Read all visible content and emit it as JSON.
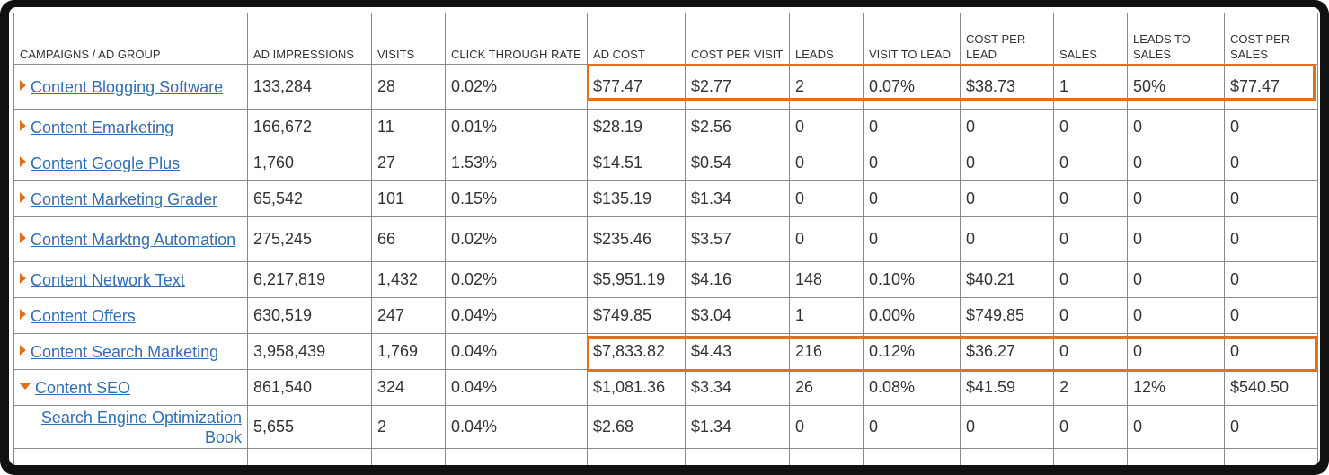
{
  "table": {
    "header": [
      "CAMPAIGNS / AD GROUP",
      "AD IMPRESSIONS",
      "VISITS",
      "CLICK THROUGH RATE",
      "AD COST",
      "COST PER VISIT",
      "LEADS",
      "VISIT TO LEAD",
      "COST PER LEAD",
      "SALES",
      "LEADS TO SALES",
      "COST PER SALES"
    ],
    "rows": [
      [
        "Content Blogging Software",
        "133,284",
        "28",
        "0.02%",
        "$77.47",
        "$2.77",
        "2",
        "0.07%",
        "$38.73",
        "1",
        "50%",
        "$77.47"
      ],
      [
        "Content Emarketing",
        "166,672",
        "11",
        "0.01%",
        "$28.19",
        "$2.56",
        "0",
        "0",
        "0",
        "0",
        "0",
        "0"
      ],
      [
        "Content Google Plus",
        "1,760",
        "27",
        "1.53%",
        "$14.51",
        "$0.54",
        "0",
        "0",
        "0",
        "0",
        "0",
        "0"
      ],
      [
        "Content Marketing Grader",
        "65,542",
        "101",
        "0.15%",
        "$135.19",
        "$1.34",
        "0",
        "0",
        "0",
        "0",
        "0",
        "0"
      ],
      [
        "Content Marktng Automation",
        "275,245",
        "66",
        "0.02%",
        "$235.46",
        "$3.57",
        "0",
        "0",
        "0",
        "0",
        "0",
        "0"
      ],
      [
        "Content Network Text",
        "6,217,819",
        "1,432",
        "0.02%",
        "$5,951.19",
        "$4.16",
        "148",
        "0.10%",
        "$40.21",
        "0",
        "0",
        "0"
      ],
      [
        "Content Offers",
        "630,519",
        "247",
        "0.04%",
        "$749.85",
        "$3.04",
        "1",
        "0.00%",
        "$749.85",
        "0",
        "0",
        "0"
      ],
      [
        "Content Search Marketing",
        "3,958,439",
        "1,769",
        "0.04%",
        "$7,833.82",
        "$4.43",
        "216",
        "0.12%",
        "$36.27",
        "0",
        "0",
        "0"
      ],
      [
        "Content SEO",
        "861,540",
        "324",
        "0.04%",
        "$1,081.36",
        "$3.34",
        "26",
        "0.08%",
        "$41.59",
        "2",
        "12%",
        "$540.50"
      ],
      [
        "Search Engine Optimization Book",
        "5,655",
        "2",
        "0.04%",
        "$2.68",
        "$1.34",
        "0",
        "0",
        "0",
        "0",
        "0",
        "0"
      ]
    ]
  }
}
